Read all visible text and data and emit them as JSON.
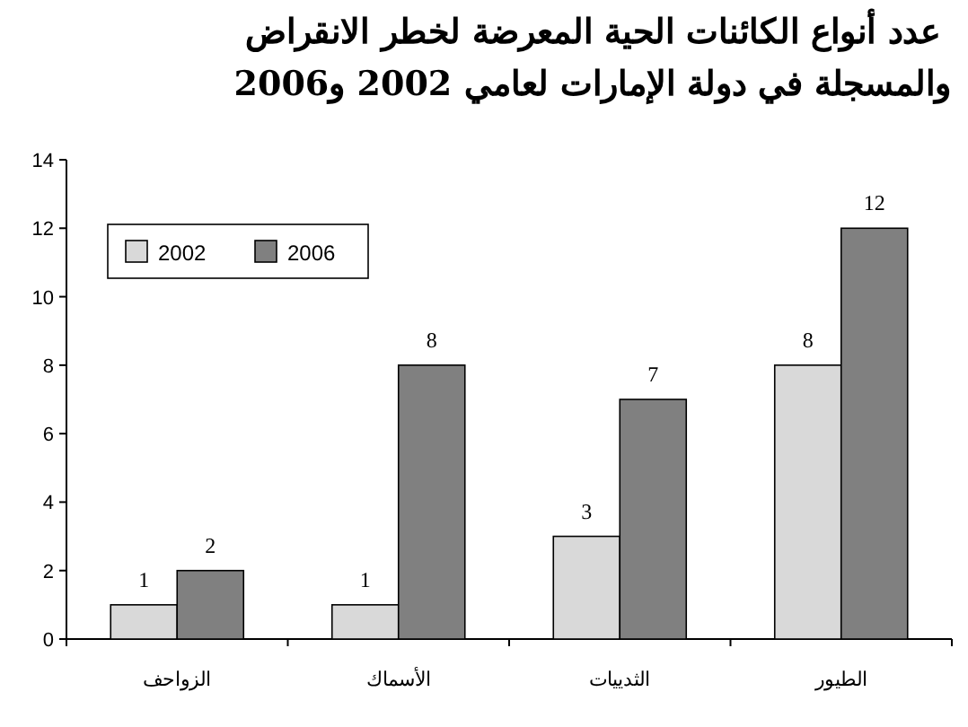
{
  "chart_data": {
    "type": "bar",
    "title": "عدد أنواع الكائنات الحية المعرضة لخطر الانقراض والمسجلة في دولة الإمارات لعامي 2002 و2006",
    "categories": [
      "الزواحف",
      "الأسماك",
      "الثدييات",
      "الطيور"
    ],
    "series": [
      {
        "name": "2002",
        "color": "#d9d9d9",
        "values": [
          1,
          1,
          3,
          8
        ]
      },
      {
        "name": "2006",
        "color": "#808080",
        "values": [
          2,
          8,
          7,
          12
        ]
      }
    ],
    "ylim": [
      0,
      14
    ],
    "yticks": [
      0,
      2,
      4,
      6,
      8,
      10,
      12,
      14
    ],
    "data_labels": true,
    "legend": "top left",
    "grid": false
  }
}
